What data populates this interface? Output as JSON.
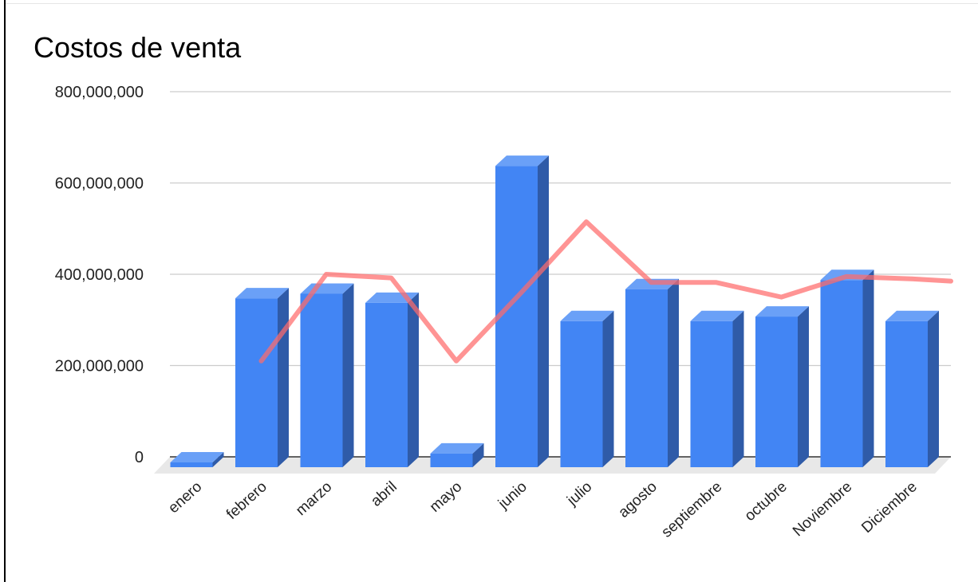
{
  "chart_data": {
    "type": "bar",
    "title": "Costos de venta",
    "xlabel": "",
    "ylabel": "",
    "ylim": [
      0,
      800000000
    ],
    "yticks": [
      0,
      200000000,
      400000000,
      600000000,
      800000000
    ],
    "ytick_labels": [
      "0",
      "200,000,000",
      "400,000,000",
      "600,000,000",
      "800,000,000"
    ],
    "categories": [
      "enero",
      "febrero",
      "marzo",
      "abril",
      "mayo",
      "junio",
      "julio",
      "agosto",
      "septiembre",
      "octubre",
      "Noviembre",
      "Diciembre"
    ],
    "series": [
      {
        "kind": "bar",
        "values": [
          0,
          370000000,
          380000000,
          360000000,
          30000000,
          660000000,
          320000000,
          390000000,
          320000000,
          330000000,
          410000000,
          320000000
        ]
      },
      {
        "kind": "line",
        "values": [
          null,
          210000000,
          400000000,
          392000000,
          210000000,
          360000000,
          515000000,
          382000000,
          382000000,
          350000000,
          395000000,
          390000000
        ],
        "trailing_value": 385000000
      }
    ],
    "grid": true,
    "legend": "none",
    "style_3d": true,
    "colors": {
      "bar_front": "#4285f4",
      "bar_top": "#6aa0f7",
      "bar_side": "#2f5ba8",
      "line": "#ff6b6b",
      "grid": "#cccccc",
      "floor": "#e8e8e8"
    }
  }
}
